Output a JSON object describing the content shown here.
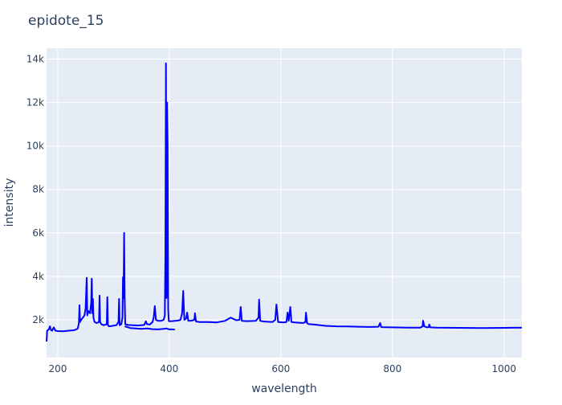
{
  "chart_data": {
    "type": "line",
    "title": "epidote_15",
    "xlabel": "wavelength",
    "ylabel": "intensity",
    "xlim": [
      180,
      1032
    ],
    "ylim": [
      260,
      14500
    ],
    "xticks": [
      200,
      400,
      600,
      800,
      1000
    ],
    "xtick_labels": [
      "200",
      "400",
      "600",
      "800",
      "1000"
    ],
    "yticks": [
      2000,
      4000,
      6000,
      8000,
      10000,
      12000,
      14000
    ],
    "ytick_labels": [
      "2k",
      "4k",
      "6k",
      "8k",
      "10k",
      "12k",
      "14k"
    ],
    "grid": true,
    "colors": {
      "line": "#0000ff",
      "plot_bg": "#e5ecf6",
      "grid": "#ffffff"
    },
    "series": [
      {
        "x": [
          180,
          181,
          184,
          186,
          188,
          190,
          193,
          196,
          200,
          210,
          220,
          230,
          236,
          238,
          239,
          240,
          242,
          245,
          248,
          250,
          252,
          253,
          255,
          258,
          260,
          261,
          262,
          263,
          264,
          266,
          270,
          274,
          275,
          276,
          278,
          282,
          288,
          289,
          290,
          292,
          298,
          305,
          309,
          310,
          311,
          314,
          316,
          317,
          318,
          319,
          320,
          321,
          323,
          326,
          335,
          345,
          355,
          358,
          360,
          365,
          370,
          372,
          374,
          376,
          380,
          385,
          390,
          392,
          393,
          394,
          395,
          396,
          397,
          398,
          399,
          400,
          405,
          410,
          415,
          420,
          423,
          425,
          427,
          430,
          432,
          434,
          440,
          445,
          446,
          448,
          455,
          470,
          485,
          500,
          510,
          520,
          526,
          528,
          530,
          540,
          555,
          560,
          561,
          563,
          570,
          585,
          590,
          592,
          595,
          605,
          610,
          612,
          614,
          617,
          619,
          625,
          640,
          644,
          645,
          647,
          650,
          660,
          680,
          700,
          720,
          740,
          760,
          775,
          778,
          780,
          800,
          830,
          850,
          854,
          855,
          857,
          862,
          865,
          866,
          868,
          880,
          920,
          960,
          1000,
          1032
        ],
        "y": [
          1000,
          1500,
          1550,
          1700,
          1520,
          1500,
          1650,
          1500,
          1480,
          1470,
          1500,
          1520,
          1600,
          1850,
          2670,
          1900,
          2000,
          2100,
          2200,
          2500,
          3930,
          2200,
          2400,
          2300,
          2800,
          3890,
          2300,
          2960,
          2100,
          1900,
          1850,
          1900,
          3110,
          1900,
          1800,
          1750,
          1800,
          3040,
          1750,
          1700,
          1720,
          1750,
          1900,
          2960,
          1750,
          1800,
          2100,
          3960,
          3000,
          6000,
          3000,
          1800,
          1780,
          1760,
          1750,
          1740,
          1760,
          1930,
          1800,
          1780,
          1900,
          2100,
          2630,
          2000,
          1950,
          1950,
          2000,
          2200,
          5000,
          13800,
          3000,
          12000,
          10070,
          2500,
          1950,
          1930,
          1940,
          1950,
          1960,
          2000,
          2300,
          3330,
          2000,
          2050,
          2330,
          1950,
          1960,
          2000,
          2300,
          1920,
          1900,
          1900,
          1880,
          1950,
          2100,
          1980,
          2000,
          2590,
          1950,
          1940,
          1950,
          2100,
          2930,
          1950,
          1920,
          1900,
          2000,
          2700,
          1900,
          1880,
          1900,
          2330,
          1950,
          2590,
          1900,
          1880,
          1850,
          1900,
          2330,
          1850,
          1800,
          1780,
          1720,
          1700,
          1690,
          1680,
          1670,
          1680,
          1850,
          1660,
          1650,
          1640,
          1640,
          1700,
          1960,
          1700,
          1650,
          1660,
          1780,
          1650,
          1640,
          1630,
          1620,
          1630,
          1640
        ]
      },
      {
        "x": [
          320,
          330,
          340,
          350,
          360,
          370,
          380,
          390,
          395,
          400,
          405,
          410
        ],
        "y": [
          1700,
          1620,
          1600,
          1580,
          1600,
          1570,
          1560,
          1580,
          1600,
          1560,
          1560,
          1550
        ]
      }
    ]
  }
}
